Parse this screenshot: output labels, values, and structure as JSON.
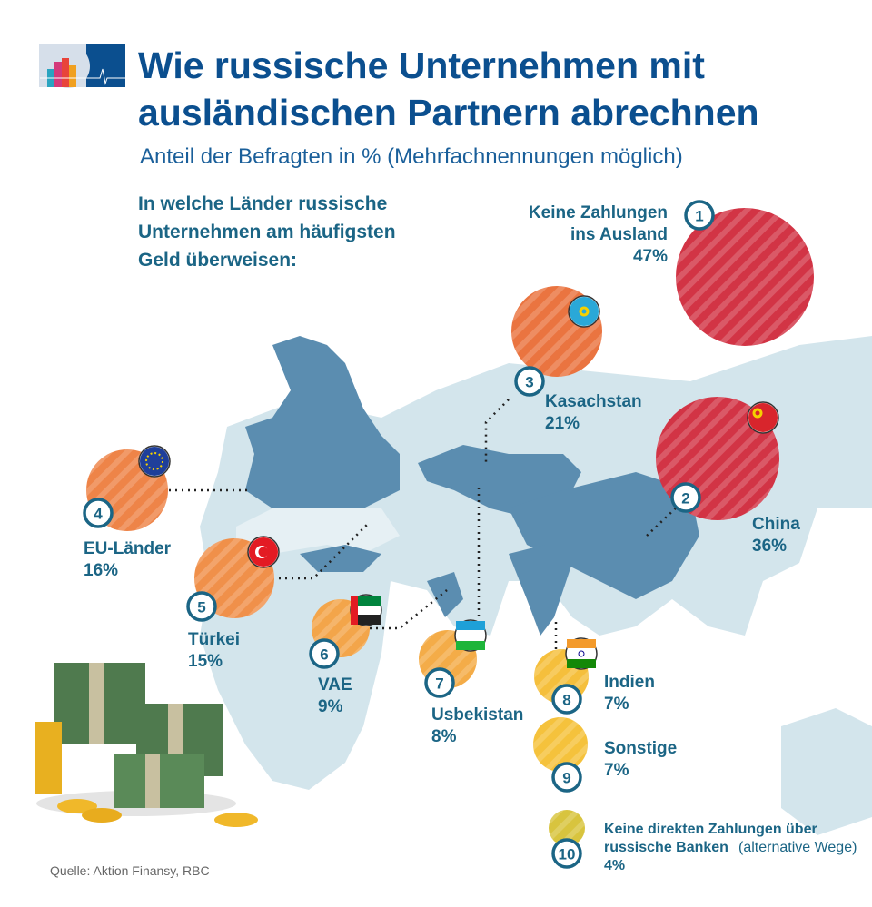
{
  "header": {
    "title_line1": "Wie russische Unternehmen mit",
    "title_line2": "ausländischen Partnern abrechnen",
    "subtitle": "Anteil der Befragten in % (Mehrfachnennungen möglich)",
    "question_line1": "In welche Länder russische",
    "question_line2": "Unternehmen am häufigsten",
    "question_line3": "Geld überweisen:"
  },
  "source": "Quelle: Aktion Finansy, RBC",
  "colors": {
    "title": "#0b4f8f",
    "label": "#1b6585",
    "map_light": "#cfe2ea",
    "map_dark": "#5b8db0",
    "red": "#d23445",
    "orange": "#ea7440",
    "light_orange": "#f29a4a",
    "yellow": "#f5bf3c",
    "olive": "#d8c43e"
  },
  "chart_data": {
    "type": "bubble",
    "title": "Wie russische Unternehmen mit ausländischen Partnern abrechnen",
    "unit": "%",
    "items": [
      {
        "rank": "1",
        "label_lines": [
          "Keine Zahlungen",
          "ins Ausland"
        ],
        "value": 47,
        "value_label": "47%",
        "color": "#d23445",
        "flag": "none"
      },
      {
        "rank": "2",
        "label_lines": [
          "China"
        ],
        "value": 36,
        "value_label": "36%",
        "color": "#d23445",
        "flag": "china-flag"
      },
      {
        "rank": "3",
        "label_lines": [
          "Kasachstan"
        ],
        "value": 21,
        "value_label": "21%",
        "color": "#ea7440",
        "flag": "kazakhstan-flag"
      },
      {
        "rank": "4",
        "label_lines": [
          "EU-Länder"
        ],
        "value": 16,
        "value_label": "16%",
        "color": "#ee8448",
        "flag": "eu-flag"
      },
      {
        "rank": "5",
        "label_lines": [
          "Türkei"
        ],
        "value": 15,
        "value_label": "15%",
        "color": "#f0904a",
        "flag": "turkey-flag"
      },
      {
        "rank": "6",
        "label_lines": [
          "VAE"
        ],
        "value": 9,
        "value_label": "9%",
        "color": "#f3a54a",
        "flag": "uae-flag"
      },
      {
        "rank": "7",
        "label_lines": [
          "Usbekistan"
        ],
        "value": 8,
        "value_label": "8%",
        "color": "#f4ac48",
        "flag": "uzbekistan-flag"
      },
      {
        "rank": "8",
        "label_lines": [
          "Indien"
        ],
        "value": 7,
        "value_label": "7%",
        "color": "#f5bf3c",
        "flag": "india-flag"
      },
      {
        "rank": "9",
        "label_lines": [
          "Sonstige"
        ],
        "value": 7,
        "value_label": "7%",
        "color": "#f5c23c",
        "flag": "none"
      },
      {
        "rank": "10",
        "label_lines": [
          "Keine direkten Zahlungen über",
          "russische Banken"
        ],
        "label_note": "(alternative Wege)",
        "value": 4,
        "value_label": "4%",
        "color": "#d8c43e",
        "flag": "none"
      }
    ]
  }
}
